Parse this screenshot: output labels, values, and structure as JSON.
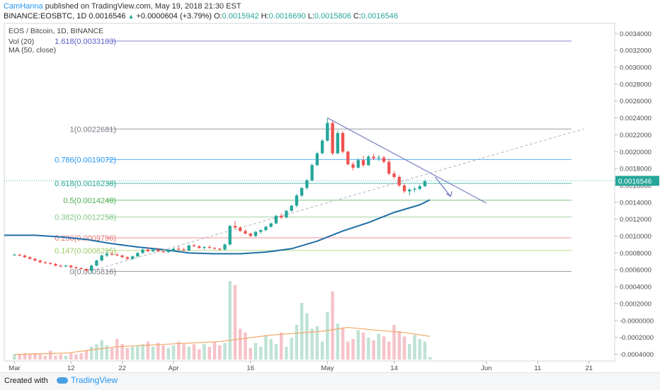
{
  "header": {
    "author": "CamHanna",
    "published": " published on TradingView.com, May 19, 2018 21:30 EST",
    "symbol": "BINANCE:EOSBTC, 1D",
    "last": "0.0016546",
    "change": "+0.0000604 (+3.79%)",
    "o_label": "O:",
    "o_value": "0.0015942",
    "h_label": "H:",
    "h_value": "0.0016690",
    "l_label": "L:",
    "l_value": "0.0015806",
    "c_label": "C:",
    "c_value": "0.0016546"
  },
  "footer": {
    "created": "Created with",
    "brand": "TradingView"
  },
  "chart_data": {
    "type": "candlestick",
    "title": "EOS / Bitcoin, 1D, BINANCE",
    "indicators": [
      "Vol (20)",
      "MA (50, close)"
    ],
    "y_axis": {
      "ticks": [
        "0.0034000",
        "0.0032000",
        "0.0030000",
        "0.0028000",
        "0.0026000",
        "0.0024000",
        "0.0022000",
        "0.0020000",
        "0.0018000",
        "0.0016000",
        "0.0014000",
        "0.0012000",
        "0.0010000",
        "0.0008000",
        "0.0006000",
        "0.0004000",
        "0.0002000",
        "-0.0000000",
        "-0.0002000",
        "-0.0004000"
      ],
      "ylim": [
        -0.00048,
        0.00352
      ]
    },
    "x_axis": {
      "ticks": [
        "Mar",
        "12",
        "22",
        "Apr",
        "16",
        "May",
        "14",
        "Jun",
        "11",
        "21"
      ],
      "days": [
        0,
        11,
        21,
        31,
        46,
        61,
        74,
        92,
        102,
        112
      ],
      "xlim": [
        -2,
        117
      ]
    },
    "last_price": "0.0016546",
    "last_price_value": 0.0016546,
    "fib_levels": [
      {
        "label": "1.618(0.0033103)",
        "value": 0.0033103,
        "color": "#5c5cc9"
      },
      {
        "label": "1(0.0022681)",
        "value": 0.0022681,
        "color": "#787b86"
      },
      {
        "label": "0.786(0.0019072)",
        "value": 0.0019072,
        "color": "#2196f3"
      },
      {
        "label": "0.618(0.0016238)",
        "value": 0.0016238,
        "color": "#26a69a"
      },
      {
        "label": "0.5(0.0014248)",
        "value": 0.0014248,
        "color": "#4caf50"
      },
      {
        "label": "0.382(0.0012258)",
        "value": 0.0012258,
        "color": "#81c784"
      },
      {
        "label": "0.236(0.0009796)",
        "value": 0.0009796,
        "color": "#e57373"
      },
      {
        "label": "0.147(0.0008295)",
        "value": 0.0008295,
        "color": "#9ccc65"
      },
      {
        "label": "0(0.0005816)",
        "value": 0.0005816,
        "color": "#787b86"
      }
    ],
    "candles": [
      [
        0.00078,
        0.00079,
        0.00077,
        0.00078
      ],
      [
        0.00078,
        0.00079,
        0.00076,
        0.00077
      ],
      [
        0.00077,
        0.00078,
        0.00074,
        0.00075
      ],
      [
        0.00075,
        0.00076,
        0.00072,
        0.00073
      ],
      [
        0.00073,
        0.00074,
        0.0007,
        0.00071
      ],
      [
        0.00071,
        0.00072,
        0.00068,
        0.00069
      ],
      [
        0.00069,
        0.0007,
        0.00067,
        0.00068
      ],
      [
        0.00068,
        0.00069,
        0.00066,
        0.00067
      ],
      [
        0.00067,
        0.00068,
        0.00064,
        0.00065
      ],
      [
        0.00065,
        0.00066,
        0.00063,
        0.00064
      ],
      [
        0.00064,
        0.00066,
        0.00063,
        0.00065
      ],
      [
        0.00065,
        0.00066,
        0.00062,
        0.00063
      ],
      [
        0.00063,
        0.00064,
        0.00061,
        0.00062
      ],
      [
        0.00062,
        0.00063,
        0.0006,
        0.00061
      ],
      [
        0.00061,
        0.00062,
        0.00058,
        0.00059
      ],
      [
        0.00059,
        0.00066,
        0.00056,
        0.00065
      ],
      [
        0.00065,
        0.00072,
        0.00064,
        0.00071
      ],
      [
        0.00071,
        0.00078,
        0.0007,
        0.00077
      ],
      [
        0.00077,
        0.00081,
        0.00075,
        0.00079
      ],
      [
        0.00079,
        0.00081,
        0.00077,
        0.00078
      ],
      [
        0.00078,
        0.0008,
        0.00076,
        0.00077
      ],
      [
        0.00077,
        0.00078,
        0.00074,
        0.00075
      ],
      [
        0.00075,
        0.00076,
        0.00072,
        0.00073
      ],
      [
        0.00073,
        0.00077,
        0.00072,
        0.00076
      ],
      [
        0.00076,
        0.00081,
        0.00075,
        0.0008
      ],
      [
        0.0008,
        0.00085,
        0.00079,
        0.00084
      ],
      [
        0.00084,
        0.00087,
        0.00081,
        0.00082
      ],
      [
        0.00082,
        0.00085,
        0.00081,
        0.00084
      ],
      [
        0.00084,
        0.00086,
        0.00081,
        0.00082
      ],
      [
        0.00082,
        0.00083,
        0.0008,
        0.00081
      ],
      [
        0.00081,
        0.00084,
        0.0008,
        0.00083
      ],
      [
        0.00083,
        0.00086,
        0.00082,
        0.00085
      ],
      [
        0.00085,
        0.00088,
        0.00083,
        0.00084
      ],
      [
        0.00084,
        0.00086,
        0.00082,
        0.00083
      ],
      [
        0.00083,
        0.0009,
        0.00082,
        0.00089
      ],
      [
        0.00089,
        0.00091,
        0.00087,
        0.00088
      ],
      [
        0.00088,
        0.00089,
        0.00085,
        0.00086
      ],
      [
        0.00086,
        0.00088,
        0.00084,
        0.00087
      ],
      [
        0.00087,
        0.00089,
        0.00085,
        0.00086
      ],
      [
        0.00086,
        0.00087,
        0.00084,
        0.00085
      ],
      [
        0.00085,
        0.00086,
        0.00083,
        0.00084
      ],
      [
        0.00084,
        0.00091,
        0.00083,
        0.0009
      ],
      [
        0.0009,
        0.00113,
        0.00089,
        0.00112
      ],
      [
        0.00112,
        0.00118,
        0.00109,
        0.0011
      ],
      [
        0.0011,
        0.00112,
        0.00105,
        0.00106
      ],
      [
        0.00106,
        0.00108,
        0.00102,
        0.00103
      ],
      [
        0.00103,
        0.00104,
        0.00099,
        0.001
      ],
      [
        0.001,
        0.00106,
        0.00099,
        0.00105
      ],
      [
        0.00105,
        0.00108,
        0.00103,
        0.00107
      ],
      [
        0.00107,
        0.00112,
        0.00106,
        0.00111
      ],
      [
        0.00111,
        0.00116,
        0.0011,
        0.00115
      ],
      [
        0.00115,
        0.00125,
        0.00114,
        0.00124
      ],
      [
        0.00124,
        0.00127,
        0.0012,
        0.00122
      ],
      [
        0.00122,
        0.00131,
        0.00121,
        0.0013
      ],
      [
        0.0013,
        0.00137,
        0.00129,
        0.00136
      ],
      [
        0.00136,
        0.0015,
        0.00134,
        0.00148
      ],
      [
        0.00148,
        0.00158,
        0.00146,
        0.00157
      ],
      [
        0.00157,
        0.00168,
        0.00155,
        0.00166
      ],
      [
        0.00166,
        0.00186,
        0.00165,
        0.00184
      ],
      [
        0.00184,
        0.002,
        0.00183,
        0.00198
      ],
      [
        0.00198,
        0.00215,
        0.00197,
        0.00213
      ],
      [
        0.00213,
        0.0024,
        0.00212,
        0.00234
      ],
      [
        0.00234,
        0.00236,
        0.00196,
        0.00198
      ],
      [
        0.00198,
        0.00225,
        0.00197,
        0.00222
      ],
      [
        0.00222,
        0.00224,
        0.00198,
        0.002
      ],
      [
        0.002,
        0.00201,
        0.00184,
        0.00185
      ],
      [
        0.00185,
        0.00188,
        0.00178,
        0.00181
      ],
      [
        0.00181,
        0.00192,
        0.0018,
        0.0019
      ],
      [
        0.0019,
        0.00195,
        0.00182,
        0.00184
      ],
      [
        0.00184,
        0.00196,
        0.00183,
        0.00194
      ],
      [
        0.00194,
        0.00197,
        0.0019,
        0.00192
      ],
      [
        0.00192,
        0.00196,
        0.00189,
        0.00193
      ],
      [
        0.00193,
        0.00195,
        0.00186,
        0.00188
      ],
      [
        0.00188,
        0.00192,
        0.00172,
        0.00174
      ],
      [
        0.00174,
        0.00177,
        0.00168,
        0.0017
      ],
      [
        0.0017,
        0.00172,
        0.00158,
        0.0016
      ],
      [
        0.0016,
        0.00162,
        0.00151,
        0.00153
      ],
      [
        0.00153,
        0.00157,
        0.00148,
        0.00155
      ],
      [
        0.00155,
        0.00158,
        0.00152,
        0.00156
      ],
      [
        0.00156,
        0.00161,
        0.00154,
        0.00159
      ],
      [
        0.00159,
        0.00167,
        0.00158,
        0.00165
      ]
    ],
    "ma50": [
      [
        -2,
        0.00101
      ],
      [
        4,
        0.00101
      ],
      [
        9,
        0.00099
      ],
      [
        14,
        0.00096
      ],
      [
        19,
        0.00091
      ],
      [
        24,
        0.00087
      ],
      [
        29,
        0.00084
      ],
      [
        34,
        0.0008
      ],
      [
        39,
        0.00079
      ],
      [
        44,
        0.00079
      ],
      [
        49,
        0.00081
      ],
      [
        54,
        0.00085
      ],
      [
        59,
        0.00094
      ],
      [
        64,
        0.00106
      ],
      [
        69,
        0.00116
      ],
      [
        74,
        0.00128
      ],
      [
        79,
        0.00137
      ],
      [
        81,
        0.00143
      ]
    ],
    "volume_ylim": [
      0,
      0.00066
    ],
    "volume": [
      4e-05,
      4e-05,
      5e-05,
      4e-05,
      5e-05,
      4e-05,
      3e-05,
      7e-05,
      3e-05,
      4e-05,
      3e-05,
      5e-05,
      4e-05,
      5e-05,
      7e-05,
      0.0001,
      0.00012,
      0.00015,
      0.00011,
      9e-05,
      0.00016,
      0.00012,
      9e-05,
      0.0001,
      0.00011,
      0.00012,
      0.00014,
      0.0001,
      0.00013,
      0.00011,
      9e-05,
      0.00011,
      0.00014,
      0.00012,
      0.0001,
      0.00012,
      8e-05,
      0.00012,
      0.0001,
      0.00014,
      0.00011,
      0.00013,
      0.00061,
      0.00058,
      0.00024,
      0.00021,
      9e-05,
      0.00013,
      0.0001,
      0.00019,
      0.00016,
      0.00012,
      0.00021,
      0.0001,
      0.00017,
      0.00027,
      0.00044,
      0.00036,
      0.00024,
      0.00026,
      0.00014,
      0.00037,
      0.00053,
      0.00028,
      0.00025,
      0.00014,
      0.00016,
      0.00023,
      0.00021,
      0.00017,
      0.00015,
      0.0002,
      0.00018,
      0.00014,
      0.00027,
      0.00022,
      0.00018,
      0.00012,
      0.00019,
      0.00016,
      0.00014,
      2e-05
    ],
    "volume_ma": [
      [
        0,
        4e-05
      ],
      [
        10,
        5e-05
      ],
      [
        20,
        0.0001
      ],
      [
        30,
        0.00012
      ],
      [
        40,
        0.00014
      ],
      [
        50,
        0.00019
      ],
      [
        60,
        0.00022
      ],
      [
        65,
        0.00025
      ],
      [
        70,
        0.00023
      ],
      [
        76,
        0.00021
      ],
      [
        81,
        0.00018
      ]
    ],
    "colors": {
      "up": "#26a69a",
      "down": "#ef5350",
      "ma": "#1f6fa6",
      "volume_ma": "#f0a868",
      "trend": "#7b7fc4",
      "support": "#b0b4c0"
    },
    "trendline": [
      [
        61,
        0.0024
      ],
      [
        92,
        0.00139
      ]
    ],
    "support_line": [
      [
        15,
        0.00059
      ],
      [
        111,
        0.00227
      ]
    ],
    "projection_arrow": [
      [
        82,
        0.0017
      ],
      [
        85,
        0.00147
      ]
    ]
  }
}
